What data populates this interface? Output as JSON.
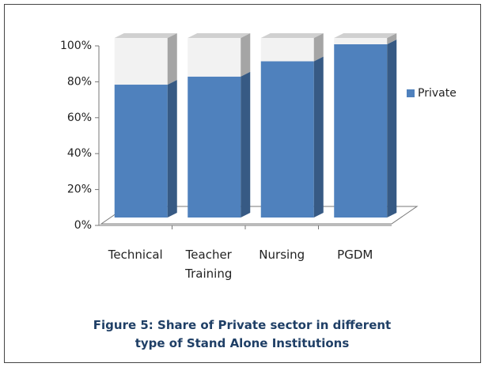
{
  "chart_data": {
    "type": "bar3d_stacked",
    "title": "Figure 5: Share of Private sector in different type of Stand Alone Institutions",
    "categories": [
      "Technical",
      "Teacher Training",
      "Nursing",
      "PGDM"
    ],
    "series": [
      {
        "name": "Private",
        "color": "#4f81bd",
        "values": [
          74,
          78.5,
          87,
          96.5
        ]
      },
      {
        "color": "#f2f2f2",
        "values": [
          26,
          21.5,
          13,
          3.5
        ]
      }
    ],
    "ylim": [
      0,
      100
    ],
    "yticks": [
      {
        "value": 0,
        "label": "0%"
      },
      {
        "value": 20,
        "label": "20%"
      },
      {
        "value": 40,
        "label": "40%"
      },
      {
        "value": 60,
        "label": "60%"
      },
      {
        "value": 80,
        "label": "80%"
      },
      {
        "value": 100,
        "label": "100%"
      }
    ],
    "legend": "right"
  }
}
